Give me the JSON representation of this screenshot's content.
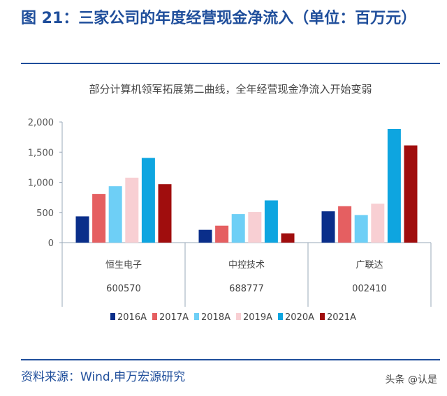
{
  "figure_title": "图 21：三家公司的年度经营现金净流入（单位：百万元）",
  "source": "资料来源：Wind,申万宏源研究",
  "watermark": "头条 @认是",
  "chart_data": {
    "type": "bar",
    "title": "部分计算机领军拓展第二曲线，全年经营现金净流入开始变弱",
    "categories": [
      "恒生电子",
      "中控技术",
      "广联达"
    ],
    "category_codes": [
      "600570",
      "688777",
      "002410"
    ],
    "ylim": [
      0,
      2000
    ],
    "yticks": [
      "0",
      "500",
      "1,000",
      "1,500",
      "2,000"
    ],
    "ytick_values": [
      0,
      500,
      1000,
      1500,
      2000
    ],
    "grid": false,
    "legend_position": "bottom",
    "series": [
      {
        "name": "2016A",
        "color": "#0a2e8a",
        "values": [
          435,
          212,
          519
        ]
      },
      {
        "name": "2017A",
        "color": "#e55f61",
        "values": [
          808,
          281,
          604
        ]
      },
      {
        "name": "2018A",
        "color": "#6ecff6",
        "values": [
          935,
          473,
          458
        ]
      },
      {
        "name": "2019A",
        "color": "#f8cfd3",
        "values": [
          1077,
          508,
          646
        ]
      },
      {
        "name": "2020A",
        "color": "#0ea5e0",
        "values": [
          1404,
          700,
          1885
        ]
      },
      {
        "name": "2021A",
        "color": "#a00d0d",
        "values": [
          969,
          154,
          1612
        ]
      }
    ]
  }
}
